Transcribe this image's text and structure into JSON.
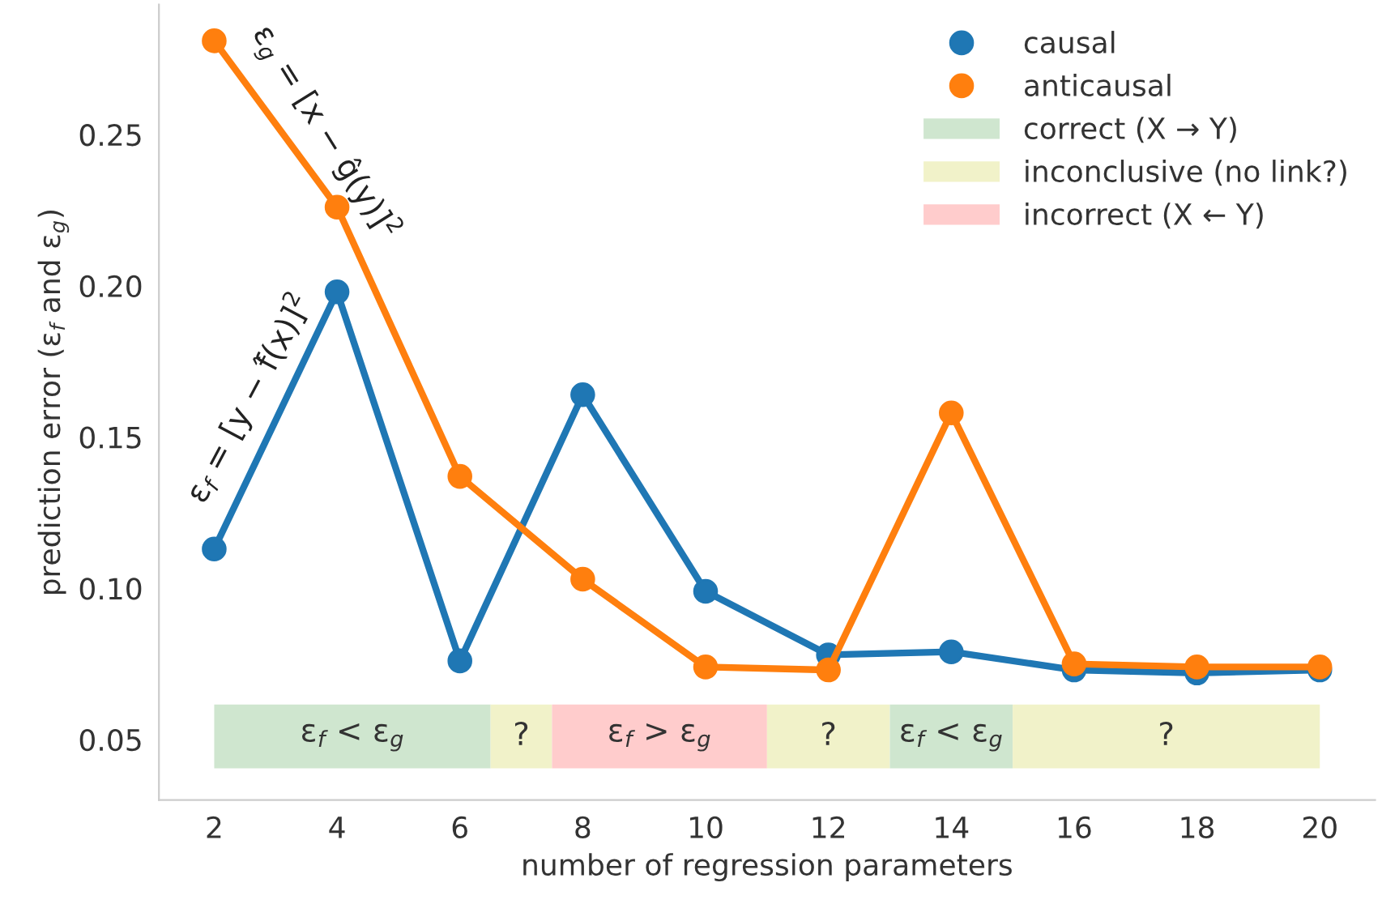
{
  "chart_data": {
    "type": "line",
    "xlabel": "number of regression parameters",
    "ylabel": "prediction error (ε$_{f}$ and ε$_{g}$)",
    "x": [
      2,
      4,
      6,
      8,
      10,
      12,
      14,
      16,
      18,
      20
    ],
    "series": [
      {
        "name": "causal",
        "color": "#1f77b4",
        "values": [
          0.113,
          0.198,
          0.076,
          0.164,
          0.099,
          0.078,
          0.079,
          0.073,
          0.072,
          0.073
        ]
      },
      {
        "name": "anticausal",
        "color": "#ff7f0e",
        "values": [
          0.281,
          0.226,
          0.137,
          0.103,
          0.074,
          0.073,
          0.158,
          0.075,
          0.074,
          0.074
        ]
      }
    ],
    "marker": "circle",
    "line_style": "solid",
    "grid": false,
    "legend": "top right",
    "xlim": [
      1.1,
      20.9
    ],
    "ylim": [
      0.03,
      0.293
    ],
    "xticks": [
      2,
      4,
      6,
      8,
      10,
      12,
      14,
      16,
      18,
      20
    ],
    "yticks": [
      0.05,
      {
        "value": 0.1,
        "label": "0.10"
      },
      0.15,
      {
        "value": 0.2,
        "label": "0.20"
      },
      0.25
    ],
    "bands": [
      {
        "axis": "x",
        "from": 2,
        "to": 6.5,
        "label": "correct (X → Y)",
        "color": "#cfe6cf"
      },
      {
        "axis": "x",
        "from": 6.5,
        "to": 7.5,
        "label": "inconclusive (no link?)",
        "color": "#f1f2c9"
      },
      {
        "axis": "x",
        "from": 7.5,
        "to": 11,
        "label": "incorrect (X ← Y)",
        "color": "#ffcccc"
      },
      {
        "axis": "x",
        "from": 11,
        "to": 13,
        "label": null,
        "color": "#f1f2c9"
      },
      {
        "axis": "x",
        "from": 13,
        "to": 15,
        "label": null,
        "color": "#cfe6cf"
      },
      {
        "axis": "x",
        "from": 15,
        "to": 20,
        "label": null,
        "color": "#f1f2c9"
      }
    ],
    "annotations": [
      "ε$_{f}$ < ε$_{g}$",
      "?",
      "ε$_{f}$ > ε$_{g}$",
      "?",
      "ε$_{f}$ < ε$_{g}$",
      "?",
      "ε$_{g}$ = [x − ĝ(y)]$^{2}$",
      "ε$_{f}$ = [y − f̂(x)]$^{2}$"
    ]
  }
}
